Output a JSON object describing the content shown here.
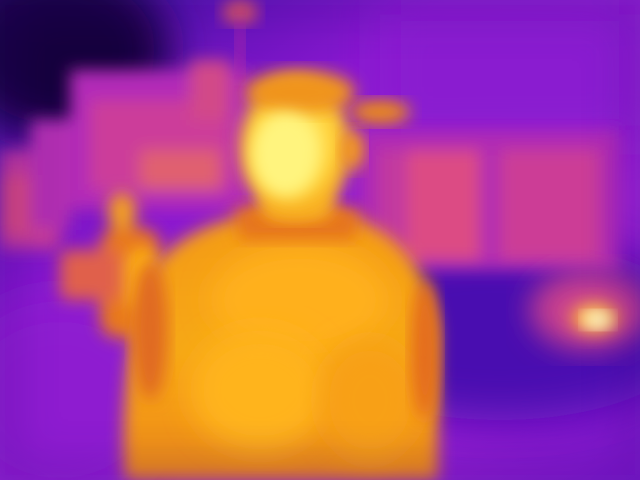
{
  "palette": {
    "cold": "#2a0a8a",
    "cool": "#5a10c8",
    "mid": "#9a20d8",
    "warm": "#d640b0",
    "hot": "#f07a18",
    "hotter": "#ffb000",
    "hottest": "#fff060"
  }
}
